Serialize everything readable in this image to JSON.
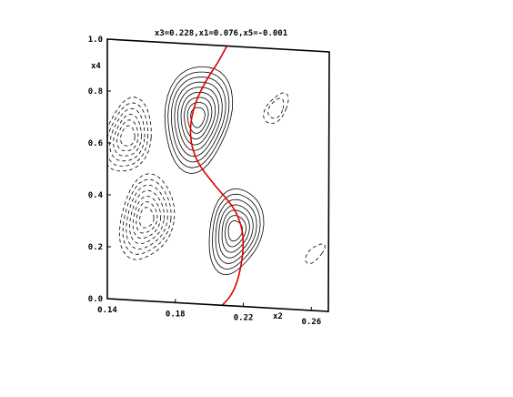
{
  "chart_data": {
    "type": "contour",
    "title": "x3=0.228,x1=0.076,x5=-0.001",
    "xlabel": "x2",
    "ylabel": "x4",
    "xlim": [
      0.14,
      0.27
    ],
    "ylim": [
      0.0,
      1.0
    ],
    "x_ticks": [
      {
        "value": 0.14,
        "label": "0.14"
      },
      {
        "value": 0.18,
        "label": "0.18"
      },
      {
        "value": 0.22,
        "label": "0.22"
      },
      {
        "value": 0.26,
        "label": "0.26"
      }
    ],
    "y_ticks": [
      {
        "value": 0.0,
        "label": "0.0"
      },
      {
        "value": 0.2,
        "label": "0.2"
      },
      {
        "value": 0.4,
        "label": "0.4"
      },
      {
        "value": 0.6,
        "label": "0.6"
      },
      {
        "value": 0.8,
        "label": "0.8"
      },
      {
        "value": 1.0,
        "label": "1.0"
      }
    ],
    "colors": {
      "contour_line": "#000000",
      "highlight_curve": "#e00000",
      "frame": "#000000"
    },
    "negative_levels_dashed": true,
    "extrema": [
      {
        "x": 0.193,
        "y": 0.72,
        "kind": "maximum",
        "levels": 9
      },
      {
        "x": 0.215,
        "y": 0.29,
        "kind": "maximum",
        "levels": 7
      },
      {
        "x": 0.163,
        "y": 0.32,
        "kind": "minimum",
        "levels": 7
      },
      {
        "x": 0.152,
        "y": 0.63,
        "kind": "minimum",
        "levels": 6
      },
      {
        "x": 0.239,
        "y": 0.77,
        "kind": "minimum",
        "levels": 2
      },
      {
        "x": 0.262,
        "y": 0.22,
        "kind": "minimum",
        "levels": 1
      }
    ],
    "highlight_curve": {
      "points": [
        [
          0.2075,
          0.0
        ],
        [
          0.2118,
          0.03
        ],
        [
          0.2158,
          0.08
        ],
        [
          0.2185,
          0.15
        ],
        [
          0.22,
          0.22
        ],
        [
          0.2195,
          0.3
        ],
        [
          0.2145,
          0.38
        ],
        [
          0.203,
          0.46
        ],
        [
          0.192,
          0.55
        ],
        [
          0.188,
          0.65
        ],
        [
          0.1905,
          0.76
        ],
        [
          0.1975,
          0.86
        ],
        [
          0.2045,
          0.93
        ],
        [
          0.21,
          1.0
        ]
      ]
    }
  }
}
